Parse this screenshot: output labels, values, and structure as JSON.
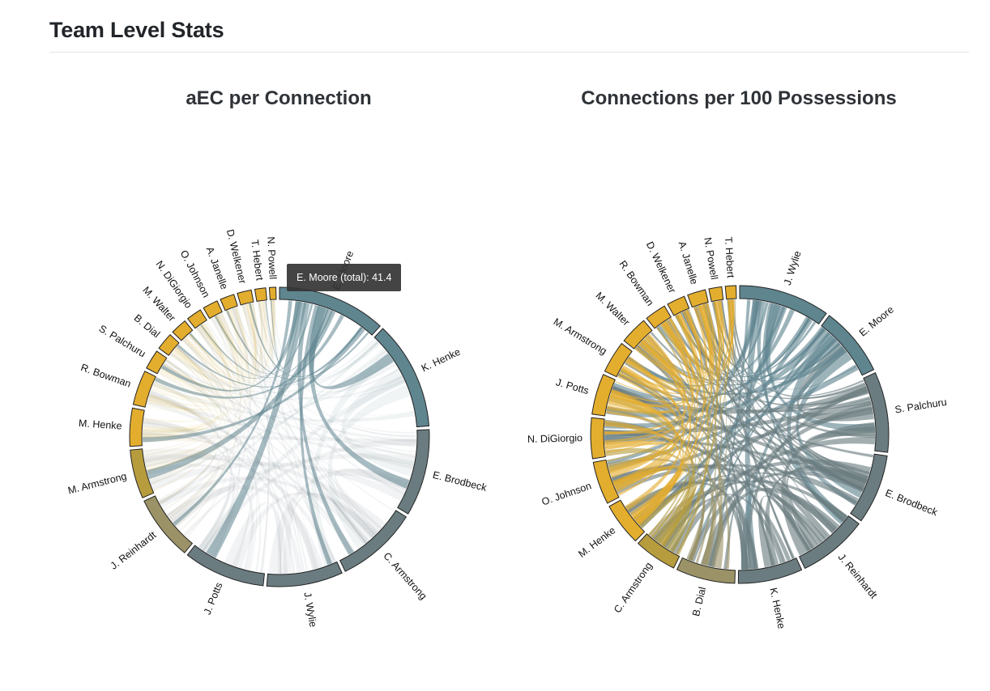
{
  "page": {
    "title": "Team Level Stats"
  },
  "colors": {
    "team_a": "#e3ad2e",
    "team_b": "#5f858f",
    "team_b_alt": "#6b7c80",
    "mixed": "#9b9367",
    "mixed_alt": "#b79c3e",
    "tooltip_bg": "#343434"
  },
  "tooltip": {
    "text": "E. Moore (total): 41.4"
  },
  "chart_data": [
    {
      "type": "chord",
      "title": "aEC per Connection",
      "highlighted": "E. Moore",
      "groups": [
        {
          "name": "E. Moore",
          "team": "b",
          "size": 10
        },
        {
          "name": "K. Henke",
          "team": "b",
          "size": 10
        },
        {
          "name": "E. Brodbeck",
          "team": "b2",
          "size": 8
        },
        {
          "name": "C. Armstrong",
          "team": "b2",
          "size": 7.5
        },
        {
          "name": "J. Wylie",
          "team": "b2",
          "size": 7
        },
        {
          "name": "J. Potts",
          "team": "b2",
          "size": 7.5
        },
        {
          "name": "J. Reinhardt",
          "team": "m",
          "size": 6
        },
        {
          "name": "M. Armstrong",
          "team": "m2",
          "size": 4.5
        },
        {
          "name": "M. Henke",
          "team": "a",
          "size": 3.5
        },
        {
          "name": "R. Bowman",
          "team": "a",
          "size": 3.2
        },
        {
          "name": "S. Palchuru",
          "team": "a",
          "size": 1.8
        },
        {
          "name": "B. Dial",
          "team": "a",
          "size": 1.6
        },
        {
          "name": "M. Walter",
          "team": "a",
          "size": 1.5
        },
        {
          "name": "N. DiGiorgio",
          "team": "a",
          "size": 1.4
        },
        {
          "name": "O. Johnson",
          "team": "a",
          "size": 1.4
        },
        {
          "name": "A. Janelle",
          "team": "a",
          "size": 1.3
        },
        {
          "name": "D. Welkener",
          "team": "a",
          "size": 1.3
        },
        {
          "name": "T. Hebert",
          "team": "a",
          "size": 1.0
        },
        {
          "name": "N. Powell",
          "team": "a",
          "size": 0.6
        }
      ]
    },
    {
      "type": "chord",
      "title": "Connections per 100 Possessions",
      "groups": [
        {
          "name": "J. Wylie",
          "team": "b",
          "size": 8.5
        },
        {
          "name": "E. Moore",
          "team": "b",
          "size": 6.5
        },
        {
          "name": "S. Palchuru",
          "team": "b2",
          "size": 7.5
        },
        {
          "name": "E. Brodbeck",
          "team": "b2",
          "size": 6.5
        },
        {
          "name": "J. Reinhardt",
          "team": "b2",
          "size": 6.5
        },
        {
          "name": "K. Henke",
          "team": "b2",
          "size": 6.0
        },
        {
          "name": "B. Dial",
          "team": "m",
          "size": 5.5
        },
        {
          "name": "C. Armstrong",
          "team": "m2",
          "size": 4.0
        },
        {
          "name": "M. Henke",
          "team": "a",
          "size": 4.0
        },
        {
          "name": "O. Johnson",
          "team": "a",
          "size": 4.0
        },
        {
          "name": "N. DiGiorgio",
          "team": "a",
          "size": 3.8
        },
        {
          "name": "J. Potts",
          "team": "a",
          "size": 3.8
        },
        {
          "name": "M. Armstrong",
          "team": "a",
          "size": 3.0
        },
        {
          "name": "M. Walter",
          "team": "a",
          "size": 2.6
        },
        {
          "name": "R. Bowman",
          "team": "a",
          "size": 2.0
        },
        {
          "name": "D. Welkener",
          "team": "a",
          "size": 1.7
        },
        {
          "name": "A. Janelle",
          "team": "a",
          "size": 1.7
        },
        {
          "name": "N. Powell",
          "team": "a",
          "size": 1.2
        },
        {
          "name": "T. Hebert",
          "team": "a",
          "size": 1.0
        }
      ]
    }
  ]
}
